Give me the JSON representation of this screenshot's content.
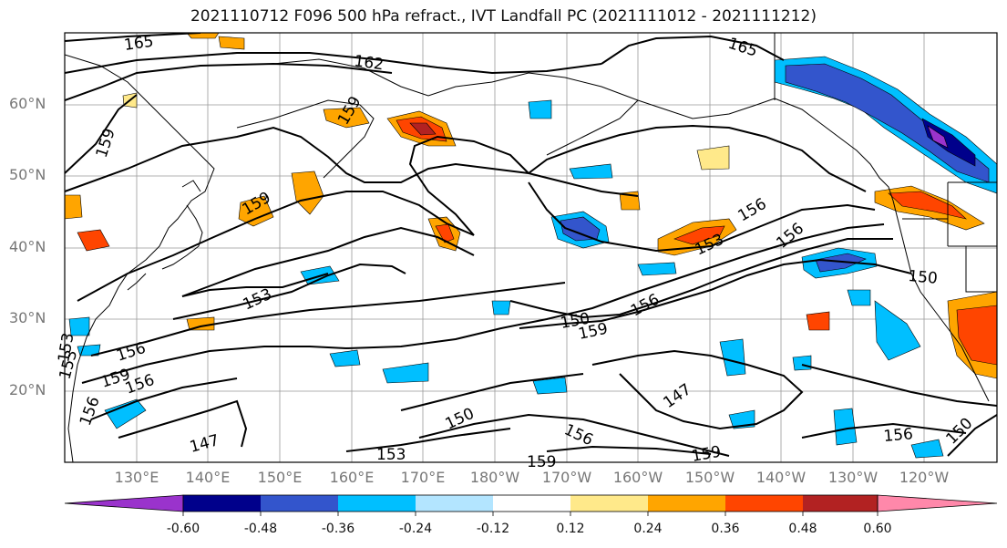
{
  "title": "2021110712 F096 500 hPa refract., IVT Landfall PC (2021111012 - 2021111212)",
  "lat_labels": [
    "60°N",
    "50°N",
    "40°N",
    "30°N",
    "20°N"
  ],
  "lon_labels": [
    "130°E",
    "140°E",
    "150°E",
    "160°E",
    "170°E",
    "180°W",
    "170°W",
    "160°W",
    "150°W",
    "140°W",
    "130°W",
    "120°W"
  ],
  "contour_labels": [
    "165",
    "162",
    "159",
    "153",
    "156",
    "159",
    "153",
    "156",
    "147",
    "150",
    "153",
    "159",
    "156",
    "147",
    "156",
    "159",
    "150",
    "165",
    "156",
    "156",
    "153",
    "150",
    "156",
    "150",
    "159",
    "153",
    "159",
    "159",
    "156"
  ],
  "colorbar": {
    "ticks": [
      "-0.60",
      "-0.48",
      "-0.36",
      "-0.24",
      "-0.12",
      "0.12",
      "0.24",
      "0.36",
      "0.48",
      "0.60"
    ],
    "colors": [
      "#9a33cc",
      "#00008b",
      "#3355cc",
      "#00bfff",
      "#b3e5ff",
      "#ffffff",
      "#ffe98a",
      "#ffa500",
      "#ff4500",
      "#b22222",
      "#ff88aa"
    ]
  }
}
